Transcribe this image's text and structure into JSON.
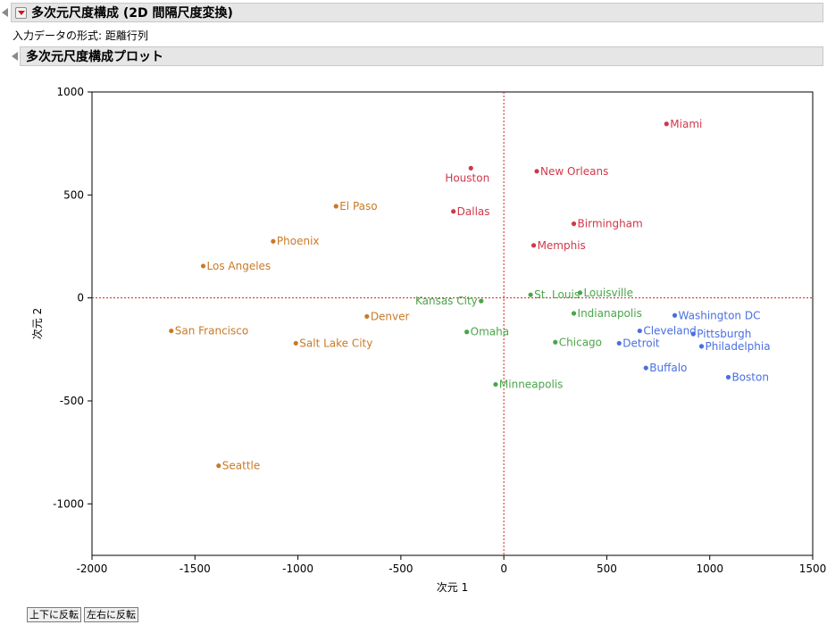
{
  "report": {
    "title": "多次元尺度構成 (2D 間隔尺度変換)",
    "input_format_label": "入力データの形式: 距離行列",
    "plot_section_title": "多次元尺度構成プロット"
  },
  "buttons": {
    "flip_vertical": "上下に反転",
    "flip_horizontal": "左右に反転"
  },
  "colors": {
    "south": "#d0384a",
    "west": "#c97a26",
    "midwest": "#4aa54a",
    "northeast": "#4a6fe0",
    "reference_line": "#d02020",
    "expand_button": "#d0151f"
  },
  "chart_data": {
    "type": "scatter",
    "xlabel": "次元 1",
    "ylabel": "次元 2",
    "xlim": [
      -2000,
      1500
    ],
    "ylim": [
      -1250,
      1000
    ],
    "xticks": [
      -2000,
      -1500,
      -1000,
      -500,
      0,
      500,
      1000,
      1500
    ],
    "yticks": [
      1000,
      500,
      0,
      -500,
      -1000
    ],
    "grid": false,
    "reference_lines": {
      "x": 0,
      "y": 0
    },
    "points": [
      {
        "label": "Miami",
        "x": 790,
        "y": 845,
        "group": "south"
      },
      {
        "label": "New Orleans",
        "x": 160,
        "y": 615,
        "group": "south"
      },
      {
        "label": "Houston",
        "x": -160,
        "y": 630,
        "group": "south"
      },
      {
        "label": "Dallas",
        "x": -245,
        "y": 420,
        "group": "south"
      },
      {
        "label": "Birmingham",
        "x": 340,
        "y": 360,
        "group": "south"
      },
      {
        "label": "Memphis",
        "x": 145,
        "y": 255,
        "group": "south"
      },
      {
        "label": "El Paso",
        "x": -815,
        "y": 445,
        "group": "west"
      },
      {
        "label": "Phoenix",
        "x": -1120,
        "y": 275,
        "group": "west"
      },
      {
        "label": "Los Angeles",
        "x": -1460,
        "y": 155,
        "group": "west"
      },
      {
        "label": "San Francisco",
        "x": -1615,
        "y": -160,
        "group": "west"
      },
      {
        "label": "Denver",
        "x": -665,
        "y": -90,
        "group": "west"
      },
      {
        "label": "Salt Lake City",
        "x": -1010,
        "y": -220,
        "group": "west"
      },
      {
        "label": "Seattle",
        "x": -1385,
        "y": -815,
        "group": "west"
      },
      {
        "label": "Kansas City",
        "x": -110,
        "y": -15,
        "group": "midwest"
      },
      {
        "label": "St. Louis",
        "x": 130,
        "y": 15,
        "group": "midwest"
      },
      {
        "label": "Louisville",
        "x": 370,
        "y": 25,
        "group": "midwest"
      },
      {
        "label": "Indianapolis",
        "x": 340,
        "y": -75,
        "group": "midwest"
      },
      {
        "label": "Omaha",
        "x": -180,
        "y": -165,
        "group": "midwest"
      },
      {
        "label": "Chicago",
        "x": 250,
        "y": -215,
        "group": "midwest"
      },
      {
        "label": "Minneapolis",
        "x": -40,
        "y": -420,
        "group": "midwest"
      },
      {
        "label": "Washington DC",
        "x": 830,
        "y": -85,
        "group": "northeast"
      },
      {
        "label": "Cleveland",
        "x": 660,
        "y": -160,
        "group": "northeast"
      },
      {
        "label": "Pittsburgh",
        "x": 920,
        "y": -175,
        "group": "northeast"
      },
      {
        "label": "Philadelphia",
        "x": 960,
        "y": -235,
        "group": "northeast"
      },
      {
        "label": "Detroit",
        "x": 560,
        "y": -220,
        "group": "northeast"
      },
      {
        "label": "Buffalo",
        "x": 690,
        "y": -340,
        "group": "northeast"
      },
      {
        "label": "Boston",
        "x": 1090,
        "y": -385,
        "group": "northeast"
      }
    ]
  }
}
